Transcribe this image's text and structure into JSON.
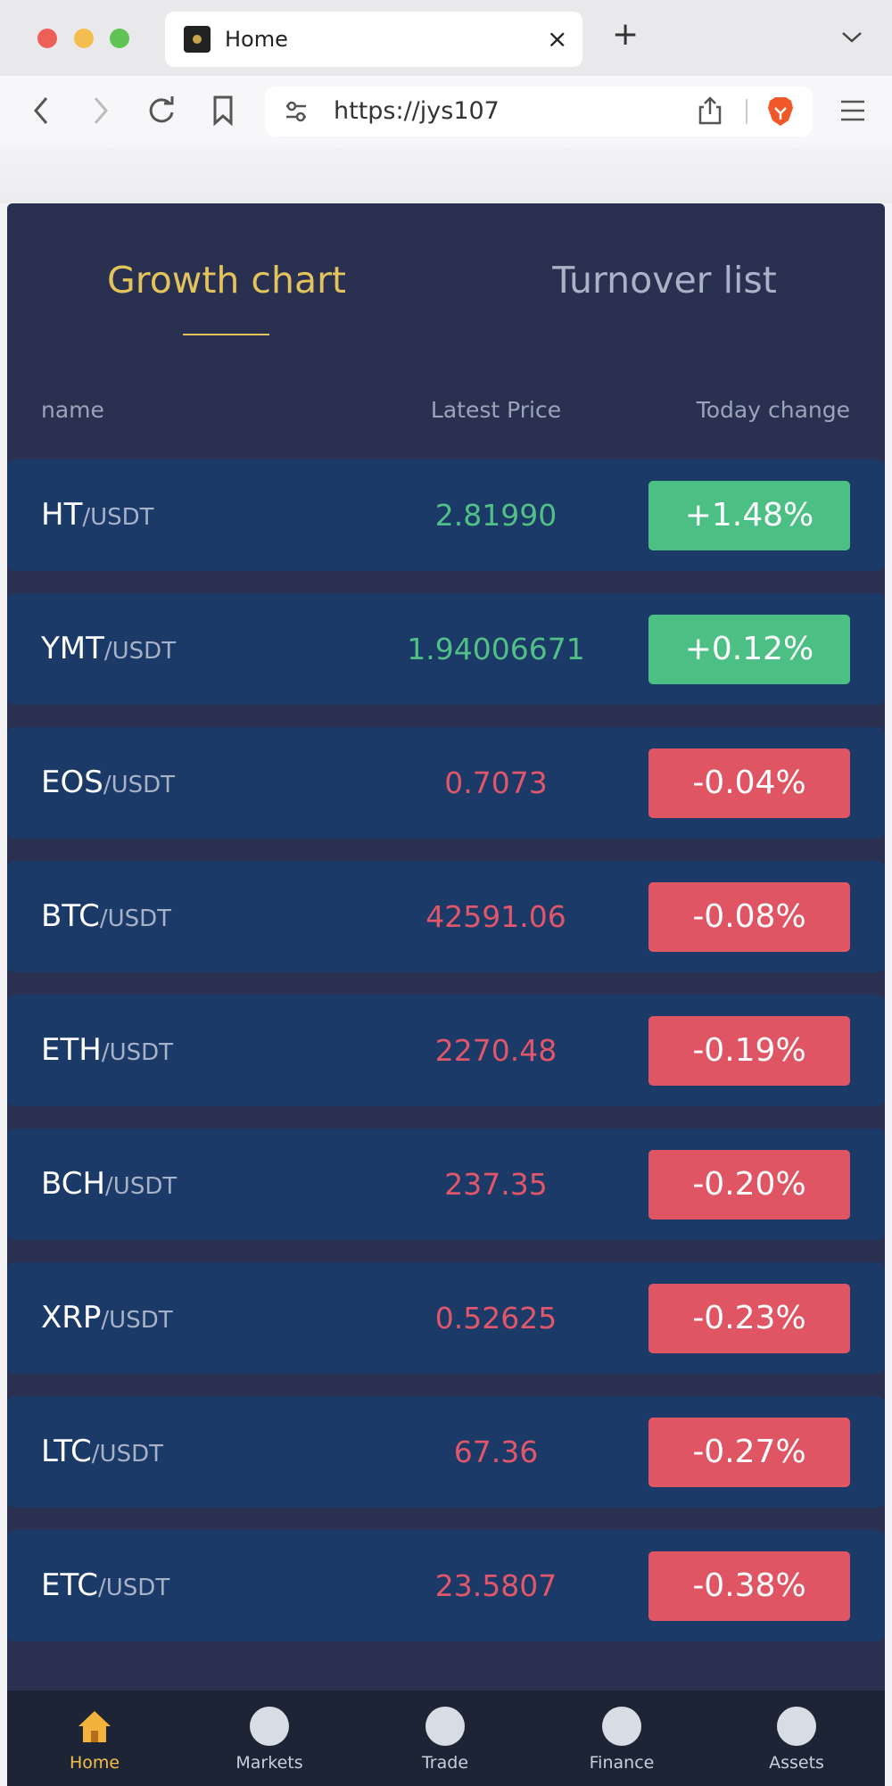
{
  "browser": {
    "tab_title": "Home",
    "url": "https://jys107"
  },
  "tabs": [
    "Growth chart",
    "Turnover list"
  ],
  "headers": [
    "name",
    "Latest Price",
    "Today change"
  ],
  "rows": [
    {
      "base": "HT",
      "quote": "/USDT",
      "price": "2.81990",
      "change": "+1.48%"
    },
    {
      "base": "YMT",
      "quote": "/USDT",
      "price": "1.94006671",
      "change": "+0.12%"
    },
    {
      "base": "EOS",
      "quote": "/USDT",
      "price": "0.7073",
      "change": "-0.04%"
    },
    {
      "base": "BTC",
      "quote": "/USDT",
      "price": "42591.06",
      "change": "-0.08%"
    },
    {
      "base": "ETH",
      "quote": "/USDT",
      "price": "2270.48",
      "change": "-0.19%"
    },
    {
      "base": "BCH",
      "quote": "/USDT",
      "price": "237.35",
      "change": "-0.20%"
    },
    {
      "base": "XRP",
      "quote": "/USDT",
      "price": "0.52625",
      "change": "-0.23%"
    },
    {
      "base": "LTC",
      "quote": "/USDT",
      "price": "67.36",
      "change": "-0.27%"
    },
    {
      "base": "ETC",
      "quote": "/USDT",
      "price": "23.5807",
      "change": "-0.38%"
    }
  ],
  "nav": [
    "Home",
    "Markets",
    "Trade",
    "Finance",
    "Assets"
  ]
}
